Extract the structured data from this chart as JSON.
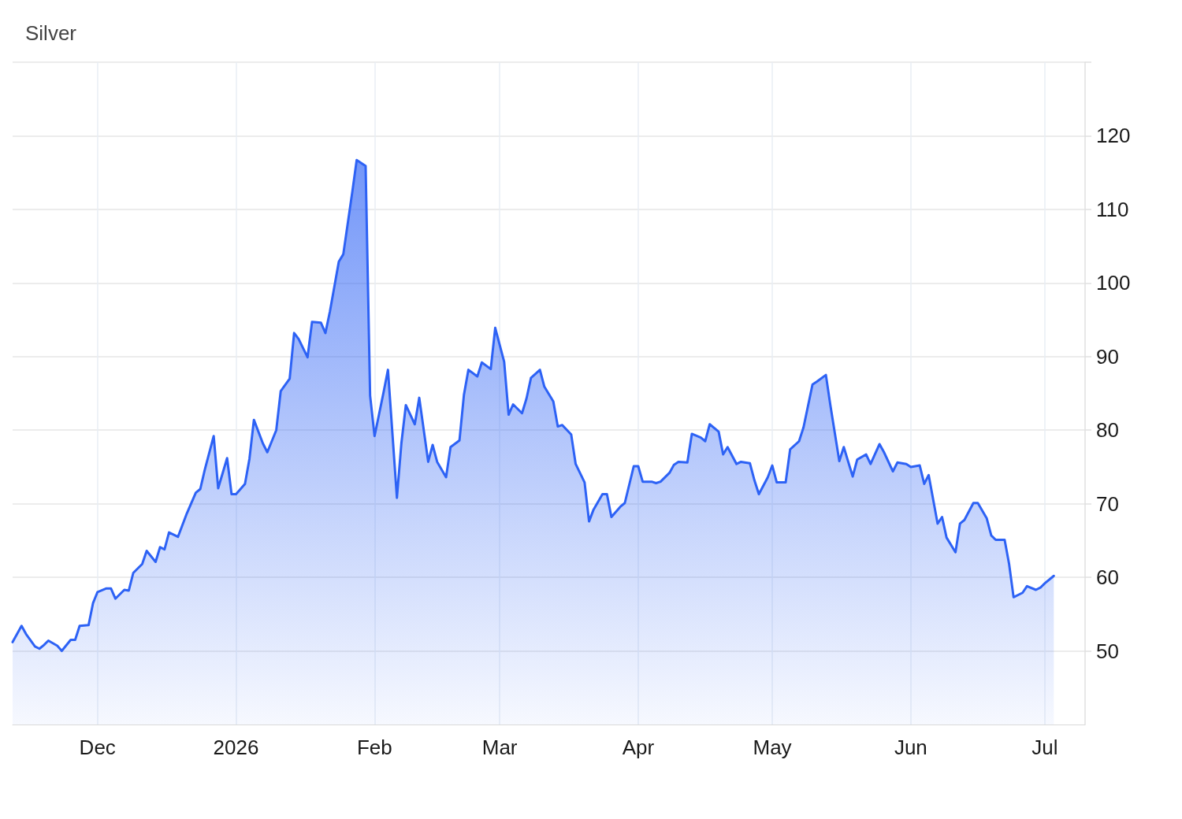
{
  "chart_data": {
    "type": "area",
    "title": "Silver",
    "x": [
      "2025-11-12",
      "2025-11-14",
      "2025-11-15",
      "2025-11-17",
      "2025-11-18",
      "2025-11-19",
      "2025-11-20",
      "2025-11-22",
      "2025-11-23",
      "2025-11-25",
      "2025-11-26",
      "2025-11-27",
      "2025-11-29",
      "2025-11-30",
      "2025-12-01",
      "2025-12-03",
      "2025-12-04",
      "2025-12-05",
      "2025-12-07",
      "2025-12-08",
      "2025-12-09",
      "2025-12-11",
      "2025-12-12",
      "2025-12-14",
      "2025-12-15",
      "2025-12-16",
      "2025-12-17",
      "2025-12-19",
      "2025-12-20",
      "2025-12-21",
      "2025-12-23",
      "2025-12-24",
      "2025-12-25",
      "2025-12-27",
      "2025-12-28",
      "2025-12-30",
      "2025-12-31",
      "2026-01-01",
      "2026-01-03",
      "2026-01-04",
      "2026-01-05",
      "2026-01-07",
      "2026-01-08",
      "2026-01-10",
      "2026-01-11",
      "2026-01-13",
      "2026-01-14",
      "2026-01-15",
      "2026-01-17",
      "2026-01-18",
      "2026-01-20",
      "2026-01-21",
      "2026-01-22",
      "2026-01-24",
      "2026-01-25",
      "2026-01-27",
      "2026-01-28",
      "2026-01-30",
      "2026-01-31",
      "2026-02-01",
      "2026-02-03",
      "2026-02-04",
      "2026-02-06",
      "2026-02-07",
      "2026-02-08",
      "2026-02-10",
      "2026-02-11",
      "2026-02-13",
      "2026-02-14",
      "2026-02-15",
      "2026-02-17",
      "2026-02-18",
      "2026-02-20",
      "2026-02-21",
      "2026-02-22",
      "2026-02-24",
      "2026-02-25",
      "2026-02-27",
      "2026-02-28",
      "2026-03-02",
      "2026-03-03",
      "2026-03-04",
      "2026-03-06",
      "2026-03-07",
      "2026-03-08",
      "2026-03-10",
      "2026-03-11",
      "2026-03-13",
      "2026-03-14",
      "2026-03-15",
      "2026-03-17",
      "2026-03-18",
      "2026-03-20",
      "2026-03-21",
      "2026-03-22",
      "2026-03-24",
      "2026-03-25",
      "2026-03-26",
      "2026-03-28",
      "2026-03-29",
      "2026-03-31",
      "2026-04-01",
      "2026-04-02",
      "2026-04-04",
      "2026-04-05",
      "2026-04-06",
      "2026-04-08",
      "2026-04-09",
      "2026-04-10",
      "2026-04-12",
      "2026-04-13",
      "2026-04-15",
      "2026-04-16",
      "2026-04-17",
      "2026-04-19",
      "2026-04-20",
      "2026-04-21",
      "2026-04-23",
      "2026-04-24",
      "2026-04-26",
      "2026-04-27",
      "2026-04-28",
      "2026-04-30",
      "2026-05-01",
      "2026-05-02",
      "2026-05-04",
      "2026-05-05",
      "2026-05-07",
      "2026-05-08",
      "2026-05-10",
      "2026-05-11",
      "2026-05-13",
      "2026-05-14",
      "2026-05-16",
      "2026-05-17",
      "2026-05-19",
      "2026-05-20",
      "2026-05-22",
      "2026-05-23",
      "2026-05-25",
      "2026-05-26",
      "2026-05-28",
      "2026-05-29",
      "2026-05-31",
      "2026-06-01",
      "2026-06-03",
      "2026-06-04",
      "2026-06-05",
      "2026-06-07",
      "2026-06-08",
      "2026-06-09",
      "2026-06-11",
      "2026-06-12",
      "2026-06-13",
      "2026-06-15",
      "2026-06-16",
      "2026-06-18",
      "2026-06-19",
      "2026-06-20",
      "2026-06-22",
      "2026-06-23",
      "2026-06-24",
      "2026-06-26",
      "2026-06-27",
      "2026-06-29",
      "2026-06-30",
      "2026-07-01",
      "2026-07-03"
    ],
    "values": [
      51.2,
      53.4,
      52.3,
      50.6,
      50.3,
      50.8,
      51.4,
      50.7,
      50.0,
      51.5,
      51.5,
      53.4,
      53.5,
      56.5,
      58.0,
      58.5,
      58.5,
      57.1,
      58.3,
      58.2,
      60.6,
      61.8,
      63.6,
      62.1,
      64.1,
      63.8,
      66.1,
      65.5,
      67.1,
      68.7,
      71.5,
      72.0,
      74.6,
      79.2,
      72.1,
      76.2,
      71.3,
      71.3,
      72.7,
      76.1,
      81.4,
      78.2,
      77.0,
      80.0,
      85.3,
      87.0,
      93.2,
      92.4,
      89.9,
      94.7,
      94.6,
      93.2,
      96.1,
      102.9,
      103.9,
      112.3,
      116.7,
      115.9,
      84.7,
      79.2,
      85.1,
      88.2,
      70.8,
      78.2,
      83.4,
      80.8,
      84.4,
      75.7,
      78.0,
      75.7,
      73.6,
      77.7,
      78.6,
      84.8,
      88.2,
      87.3,
      89.2,
      88.3,
      93.9,
      89.3,
      82.1,
      83.5,
      82.3,
      84.3,
      87.1,
      88.2,
      85.9,
      83.9,
      80.5,
      80.7,
      79.4,
      75.4,
      72.9,
      67.6,
      69.2,
      71.3,
      71.3,
      68.2,
      69.6,
      70.1,
      75.1,
      75.1,
      73.0,
      73.0,
      72.8,
      73.0,
      74.2,
      75.3,
      75.7,
      75.6,
      79.5,
      79.0,
      78.5,
      80.8,
      79.8,
      76.7,
      77.7,
      75.4,
      75.7,
      75.5,
      73.2,
      71.3,
      73.6,
      75.2,
      72.9,
      72.9,
      77.4,
      78.5,
      80.4,
      86.2,
      86.6,
      87.5,
      83.4,
      75.8,
      77.7,
      73.7,
      76.0,
      76.7,
      75.4,
      78.1,
      77.0,
      74.4,
      75.6,
      75.4,
      75.0,
      75.2,
      72.7,
      73.9,
      67.3,
      68.2,
      65.4,
      63.4,
      67.3,
      67.8,
      70.1,
      70.1,
      68.0,
      65.7,
      65.1,
      65.1,
      61.8,
      57.3,
      57.9,
      58.8,
      58.3,
      58.6,
      59.2,
      60.2
    ],
    "color": "#2d62f5",
    "xlim": [
      "2025-11-12",
      "2026-07-10"
    ],
    "xticks": [
      {
        "value": "2025-12-01",
        "label": "Dec"
      },
      {
        "value": "2026-01-01",
        "label": "2026"
      },
      {
        "value": "2026-02-01",
        "label": "Feb"
      },
      {
        "value": "2026-03-01",
        "label": "Mar"
      },
      {
        "value": "2026-04-01",
        "label": "Apr"
      },
      {
        "value": "2026-05-01",
        "label": "May"
      },
      {
        "value": "2026-06-01",
        "label": "Jun"
      },
      {
        "value": "2026-07-01",
        "label": "Jul"
      }
    ],
    "ylim": [
      40,
      130
    ],
    "yticks": [
      50,
      60,
      70,
      80,
      90,
      100,
      110,
      120,
      {
        "value": 130,
        "label": null
      }
    ],
    "grid": true,
    "marker": "none",
    "line_style": "solid"
  }
}
